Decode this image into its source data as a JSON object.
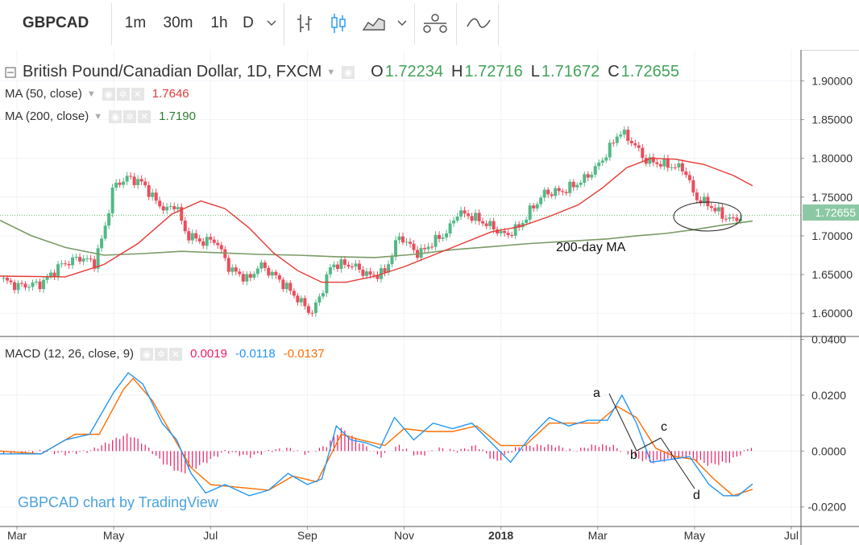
{
  "toolbar": {
    "symbol": "GBPCAD",
    "intervals": [
      "1m",
      "30m",
      "1h",
      "D"
    ],
    "active_interval": "D"
  },
  "main_legend": {
    "title": "British Pound/Canadian Dollar, 1D, FXCM",
    "open_label": "O",
    "open": "1.72234",
    "high_label": "H",
    "high": "1.72716",
    "low_label": "L",
    "low": "1.71672",
    "close_label": "C",
    "close": "1.72655"
  },
  "ma50": {
    "label": "MA (50, close)",
    "value": "1.7646",
    "color": "#e53935"
  },
  "ma200": {
    "label": "MA (200, close)",
    "value": "1.7190",
    "color": "#2e7d32"
  },
  "macd_legend": {
    "label": "MACD (12, 26, close, 9)",
    "hist": "0.0019",
    "hist_color": "#e91e63",
    "macd": "-0.0118",
    "macd_color": "#2196f3",
    "signal": "-0.0137",
    "signal_color": "#ff6d00"
  },
  "price_tag": "1.72655",
  "watermark": "GBPCAD chart by TradingView",
  "annotations": {
    "ma_label": "200-day MA",
    "a": "a",
    "b": "b",
    "c": "c",
    "d": "d"
  },
  "chart_data": [
    {
      "type": "candlestick",
      "title": "British Pound/Canadian Dollar, 1D, FXCM",
      "y_axis_ticks": [
        "1.60000",
        "1.65000",
        "1.70000",
        "1.75000",
        "1.80000",
        "1.85000",
        "1.90000"
      ],
      "ylim": [
        1.57,
        1.94
      ],
      "x_axis_ticks": [
        "Mar",
        "May",
        "Jul",
        "Sep",
        "Nov",
        "2018",
        "Mar",
        "May",
        "Jul"
      ],
      "x_tick_months": [
        0,
        2,
        4,
        6,
        8,
        10,
        12,
        14,
        16
      ],
      "xlim": [
        -0.35,
        16.2
      ],
      "last_close": 1.72655,
      "close_approx": [
        [
          -0.35,
          1.645
        ],
        [
          0.0,
          1.635
        ],
        [
          0.5,
          1.638
        ],
        [
          0.9,
          1.662
        ],
        [
          1.3,
          1.672
        ],
        [
          1.6,
          1.665
        ],
        [
          1.8,
          1.705
        ],
        [
          2.0,
          1.765
        ],
        [
          2.3,
          1.775
        ],
        [
          2.6,
          1.768
        ],
        [
          2.9,
          1.742
        ],
        [
          3.1,
          1.733
        ],
        [
          3.3,
          1.742
        ],
        [
          3.45,
          1.705
        ],
        [
          3.8,
          1.692
        ],
        [
          4.1,
          1.695
        ],
        [
          4.4,
          1.657
        ],
        [
          4.8,
          1.643
        ],
        [
          5.0,
          1.663
        ],
        [
          5.3,
          1.65
        ],
        [
          5.6,
          1.632
        ],
        [
          5.9,
          1.612
        ],
        [
          6.1,
          1.6
        ],
        [
          6.3,
          1.628
        ],
        [
          6.5,
          1.663
        ],
        [
          6.9,
          1.663
        ],
        [
          7.3,
          1.648
        ],
        [
          7.6,
          1.653
        ],
        [
          7.9,
          1.7
        ],
        [
          8.3,
          1.676
        ],
        [
          8.6,
          1.692
        ],
        [
          8.9,
          1.705
        ],
        [
          9.1,
          1.73
        ],
        [
          9.4,
          1.725
        ],
        [
          9.8,
          1.712
        ],
        [
          10.1,
          1.7
        ],
        [
          10.4,
          1.713
        ],
        [
          10.6,
          1.732
        ],
        [
          10.9,
          1.755
        ],
        [
          11.3,
          1.758
        ],
        [
          11.7,
          1.772
        ],
        [
          12.0,
          1.79
        ],
        [
          12.2,
          1.808
        ],
        [
          12.45,
          1.835
        ],
        [
          12.7,
          1.822
        ],
        [
          13.0,
          1.797
        ],
        [
          13.4,
          1.792
        ],
        [
          13.8,
          1.786
        ],
        [
          14.0,
          1.75
        ],
        [
          14.3,
          1.74
        ],
        [
          14.6,
          1.725
        ],
        [
          14.8,
          1.72
        ],
        [
          15.0,
          1.72655
        ]
      ],
      "ma50_approx": [
        [
          -0.35,
          1.648
        ],
        [
          1.0,
          1.647
        ],
        [
          1.8,
          1.663
        ],
        [
          2.5,
          1.69
        ],
        [
          3.2,
          1.728
        ],
        [
          3.8,
          1.745
        ],
        [
          4.3,
          1.735
        ],
        [
          4.8,
          1.71
        ],
        [
          5.3,
          1.678
        ],
        [
          5.8,
          1.655
        ],
        [
          6.3,
          1.64
        ],
        [
          6.8,
          1.64
        ],
        [
          7.4,
          1.648
        ],
        [
          8.0,
          1.66
        ],
        [
          8.6,
          1.675
        ],
        [
          9.2,
          1.69
        ],
        [
          9.8,
          1.705
        ],
        [
          10.4,
          1.712
        ],
        [
          11.0,
          1.725
        ],
        [
          11.6,
          1.74
        ],
        [
          12.1,
          1.762
        ],
        [
          12.6,
          1.788
        ],
        [
          13.1,
          1.8
        ],
        [
          13.6,
          1.799
        ],
        [
          14.2,
          1.792
        ],
        [
          14.8,
          1.778
        ],
        [
          15.2,
          1.7646
        ]
      ],
      "ma200_approx": [
        [
          -0.35,
          1.72
        ],
        [
          0.3,
          1.7
        ],
        [
          1.0,
          1.685
        ],
        [
          1.8,
          1.675
        ],
        [
          2.6,
          1.677
        ],
        [
          3.4,
          1.68
        ],
        [
          4.2,
          1.678
        ],
        [
          5.0,
          1.676
        ],
        [
          5.8,
          1.675
        ],
        [
          6.6,
          1.673
        ],
        [
          7.4,
          1.672
        ],
        [
          8.2,
          1.676
        ],
        [
          9.0,
          1.682
        ],
        [
          9.8,
          1.686
        ],
        [
          10.6,
          1.69
        ],
        [
          11.4,
          1.693
        ],
        [
          12.2,
          1.696
        ],
        [
          12.8,
          1.7
        ],
        [
          13.4,
          1.703
        ],
        [
          14.0,
          1.708
        ],
        [
          14.6,
          1.714
        ],
        [
          15.2,
          1.719
        ]
      ]
    },
    {
      "type": "line",
      "title": "MACD (12, 26, close, 9)",
      "y_axis_ticks": [
        "-0.0200",
        "0.0000",
        "0.0200",
        "0.0400"
      ],
      "ylim": [
        -0.027,
        0.041
      ],
      "series": [
        {
          "name": "MACD",
          "color": "#2196f3",
          "values_approx": [
            [
              -0.35,
              -0.001
            ],
            [
              0.5,
              -0.001
            ],
            [
              1.0,
              0.004
            ],
            [
              1.5,
              0.006
            ],
            [
              2.0,
              0.021
            ],
            [
              2.3,
              0.028
            ],
            [
              2.6,
              0.024
            ],
            [
              3.0,
              0.01
            ],
            [
              3.3,
              0.004
            ],
            [
              3.6,
              -0.008
            ],
            [
              3.9,
              -0.015
            ],
            [
              4.3,
              -0.012
            ],
            [
              4.8,
              -0.016
            ],
            [
              5.2,
              -0.014
            ],
            [
              5.6,
              -0.008
            ],
            [
              6.0,
              -0.012
            ],
            [
              6.3,
              -0.01
            ],
            [
              6.6,
              0.009
            ],
            [
              6.9,
              0.004
            ],
            [
              7.2,
              0.003
            ],
            [
              7.5,
              0.001
            ],
            [
              7.8,
              0.012
            ],
            [
              8.2,
              0.004
            ],
            [
              8.6,
              0.01
            ],
            [
              9.0,
              0.008
            ],
            [
              9.4,
              0.01
            ],
            [
              9.8,
              0.003
            ],
            [
              10.2,
              -0.004
            ],
            [
              10.6,
              0.005
            ],
            [
              11.0,
              0.012
            ],
            [
              11.4,
              0.009
            ],
            [
              11.8,
              0.011
            ],
            [
              12.2,
              0.011
            ],
            [
              12.5,
              0.02
            ],
            [
              12.8,
              0.01
            ],
            [
              13.1,
              -0.004
            ],
            [
              13.5,
              -0.003
            ],
            [
              13.9,
              -0.002
            ],
            [
              14.3,
              -0.012
            ],
            [
              14.6,
              -0.016
            ],
            [
              14.9,
              -0.016
            ],
            [
              15.2,
              -0.0118
            ]
          ]
        },
        {
          "name": "Signal",
          "color": "#ff6d00",
          "values_approx": [
            [
              -0.35,
              0.0
            ],
            [
              0.5,
              -0.001
            ],
            [
              1.2,
              0.006
            ],
            [
              1.7,
              0.006
            ],
            [
              2.2,
              0.022
            ],
            [
              2.4,
              0.026
            ],
            [
              2.8,
              0.018
            ],
            [
              3.2,
              0.006
            ],
            [
              3.6,
              -0.006
            ],
            [
              4.0,
              -0.012
            ],
            [
              4.6,
              -0.013
            ],
            [
              5.2,
              -0.014
            ],
            [
              5.7,
              -0.009
            ],
            [
              6.2,
              -0.011
            ],
            [
              6.7,
              0.006
            ],
            [
              7.1,
              0.004
            ],
            [
              7.6,
              0.002
            ],
            [
              8.0,
              0.008
            ],
            [
              8.5,
              0.007
            ],
            [
              9.0,
              0.007
            ],
            [
              9.5,
              0.009
            ],
            [
              10.0,
              0.002
            ],
            [
              10.5,
              0.002
            ],
            [
              11.0,
              0.01
            ],
            [
              11.5,
              0.01
            ],
            [
              12.0,
              0.01
            ],
            [
              12.4,
              0.016
            ],
            [
              12.8,
              0.012
            ],
            [
              13.2,
              0.001
            ],
            [
              13.6,
              -0.002
            ],
            [
              14.0,
              -0.003
            ],
            [
              14.4,
              -0.01
            ],
            [
              14.8,
              -0.016
            ],
            [
              15.2,
              -0.0137
            ]
          ]
        },
        {
          "name": "Histogram",
          "color": "#e91e63",
          "values_approx": [
            [
              -0.35,
              -0.001
            ],
            [
              0.5,
              0.0
            ],
            [
              1.0,
              -0.001
            ],
            [
              1.5,
              0.0
            ],
            [
              2.0,
              0.004
            ],
            [
              2.3,
              0.006
            ],
            [
              2.6,
              0.003
            ],
            [
              3.0,
              -0.004
            ],
            [
              3.4,
              -0.008
            ],
            [
              3.8,
              -0.005
            ],
            [
              4.3,
              0.0
            ],
            [
              4.8,
              -0.002
            ],
            [
              5.2,
              0.0
            ],
            [
              5.6,
              0.001
            ],
            [
              6.0,
              -0.001
            ],
            [
              6.4,
              0.002
            ],
            [
              6.7,
              0.008
            ],
            [
              7.1,
              0.003
            ],
            [
              7.5,
              -0.002
            ],
            [
              7.9,
              0.002
            ],
            [
              8.3,
              -0.002
            ],
            [
              8.7,
              0.001
            ],
            [
              9.1,
              0.0
            ],
            [
              9.5,
              0.002
            ],
            [
              9.9,
              -0.004
            ],
            [
              10.3,
              0.001
            ],
            [
              10.7,
              0.002
            ],
            [
              11.1,
              0.002
            ],
            [
              11.5,
              0.0
            ],
            [
              11.9,
              0.002
            ],
            [
              12.3,
              0.002
            ],
            [
              12.7,
              -0.002
            ],
            [
              13.1,
              -0.004
            ],
            [
              13.5,
              -0.003
            ],
            [
              13.9,
              -0.002
            ],
            [
              14.3,
              -0.005
            ],
            [
              14.7,
              -0.004
            ],
            [
              15.2,
              0.0019
            ]
          ]
        }
      ]
    }
  ]
}
